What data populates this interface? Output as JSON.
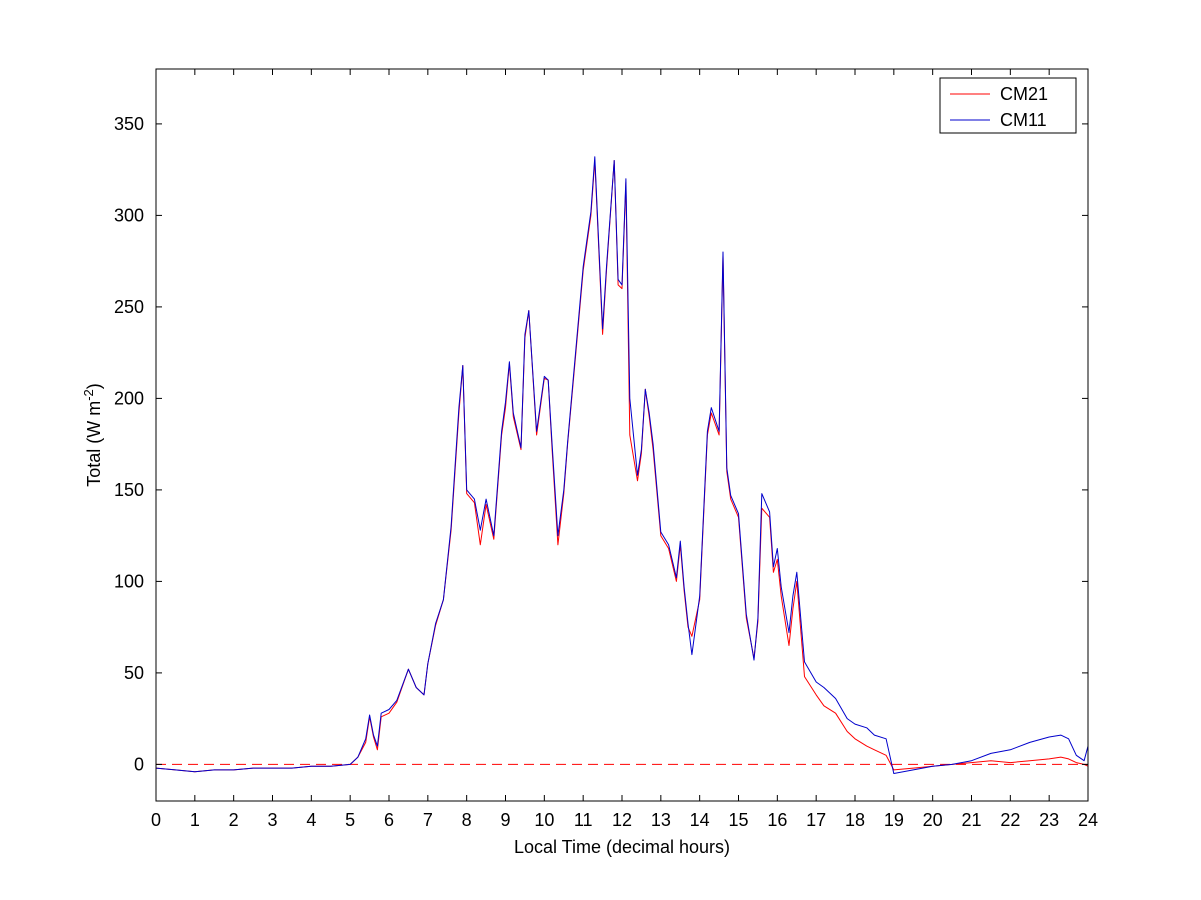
{
  "chart_data": {
    "type": "line",
    "xlabel": "Local Time (decimal hours)",
    "ylabel": {
      "main": "Total (W m",
      "sup": "-2",
      "close": ")"
    },
    "xlim": [
      0,
      24
    ],
    "ylim": [
      -20,
      380
    ],
    "xticks": [
      "0",
      "1",
      "2",
      "3",
      "4",
      "5",
      "6",
      "7",
      "8",
      "9",
      "10",
      "11",
      "12",
      "13",
      "14",
      "15",
      "16",
      "17",
      "18",
      "19",
      "20",
      "21",
      "22",
      "23",
      "24"
    ],
    "yticks": [
      "0",
      "50",
      "100",
      "150",
      "200",
      "250",
      "300",
      "350"
    ],
    "grid": false,
    "legend_position": "top-right",
    "reference_line": {
      "y": 0,
      "color": "#ff0000",
      "style": "dashed"
    },
    "series": [
      {
        "name": "CM21",
        "color": "#ff0000",
        "x": [
          0,
          0.5,
          1,
          1.5,
          2,
          2.5,
          3,
          3.5,
          4,
          4.5,
          5,
          5.2,
          5.4,
          5.5,
          5.6,
          5.7,
          5.8,
          6,
          6.2,
          6.5,
          6.7,
          6.9,
          7,
          7.2,
          7.4,
          7.6,
          7.8,
          7.9,
          8,
          8.2,
          8.35,
          8.5,
          8.7,
          8.9,
          9,
          9.1,
          9.2,
          9.4,
          9.5,
          9.6,
          9.8,
          10,
          10.1,
          10.2,
          10.35,
          10.5,
          10.6,
          10.8,
          11,
          11.2,
          11.3,
          11.5,
          11.6,
          11.8,
          11.9,
          12,
          12.1,
          12.2,
          12.4,
          12.5,
          12.6,
          12.7,
          12.8,
          13,
          13.2,
          13.4,
          13.5,
          13.6,
          13.7,
          13.8,
          14,
          14.2,
          14.3,
          14.5,
          14.6,
          14.7,
          14.8,
          15,
          15.2,
          15.4,
          15.5,
          15.6,
          15.8,
          15.9,
          16,
          16.1,
          16.3,
          16.4,
          16.5,
          16.7,
          17,
          17.2,
          17.5,
          17.8,
          18,
          18.3,
          18.5,
          18.8,
          19,
          19.5,
          20,
          20.5,
          21,
          21.5,
          22,
          22.5,
          23,
          23.3,
          23.5,
          23.7,
          23.9,
          24
        ],
        "y": [
          -2,
          -3,
          -4,
          -3,
          -3,
          -2,
          -2,
          -2,
          -1,
          -1,
          0,
          4,
          12,
          26,
          15,
          8,
          26,
          28,
          34,
          52,
          42,
          38,
          55,
          76,
          90,
          128,
          192,
          218,
          148,
          143,
          120,
          142,
          123,
          180,
          195,
          219,
          190,
          172,
          233,
          248,
          180,
          211,
          210,
          172,
          120,
          148,
          175,
          222,
          270,
          300,
          330,
          235,
          270,
          330,
          262,
          260,
          318,
          180,
          155,
          170,
          205,
          190,
          172,
          125,
          118,
          100,
          120,
          95,
          75,
          70,
          90,
          180,
          192,
          180,
          278,
          160,
          145,
          135,
          80,
          58,
          78,
          140,
          135,
          105,
          112,
          92,
          65,
          85,
          100,
          48,
          38,
          32,
          28,
          18,
          14,
          10,
          8,
          5,
          -3,
          -2,
          -1,
          0,
          1,
          2,
          1,
          2,
          3,
          4,
          3,
          1,
          0,
          -1
        ]
      },
      {
        "name": "CM11",
        "color": "#0000cc",
        "x": [
          0,
          0.5,
          1,
          1.5,
          2,
          2.5,
          3,
          3.5,
          4,
          4.5,
          5,
          5.2,
          5.4,
          5.5,
          5.6,
          5.7,
          5.8,
          6,
          6.2,
          6.5,
          6.7,
          6.9,
          7,
          7.2,
          7.4,
          7.6,
          7.8,
          7.9,
          8,
          8.2,
          8.35,
          8.5,
          8.7,
          8.9,
          9,
          9.1,
          9.2,
          9.4,
          9.5,
          9.6,
          9.8,
          10,
          10.1,
          10.2,
          10.35,
          10.5,
          10.6,
          10.8,
          11,
          11.2,
          11.3,
          11.5,
          11.6,
          11.8,
          11.9,
          12,
          12.1,
          12.2,
          12.4,
          12.5,
          12.6,
          12.7,
          12.8,
          13,
          13.2,
          13.4,
          13.5,
          13.6,
          13.7,
          13.8,
          14,
          14.2,
          14.3,
          14.5,
          14.6,
          14.7,
          14.8,
          15,
          15.2,
          15.4,
          15.5,
          15.6,
          15.8,
          15.9,
          16,
          16.1,
          16.3,
          16.4,
          16.5,
          16.7,
          17,
          17.2,
          17.5,
          17.8,
          18,
          18.3,
          18.5,
          18.8,
          19,
          19.5,
          20,
          20.5,
          21,
          21.5,
          22,
          22.5,
          23,
          23.3,
          23.5,
          23.7,
          23.9,
          24
        ],
        "y": [
          -2,
          -3,
          -4,
          -3,
          -3,
          -2,
          -2,
          -2,
          -1,
          -1,
          0,
          4,
          14,
          27,
          16,
          10,
          28,
          30,
          35,
          52,
          42,
          38,
          55,
          77,
          90,
          130,
          195,
          218,
          150,
          145,
          128,
          145,
          125,
          182,
          198,
          220,
          192,
          173,
          235,
          248,
          182,
          212,
          210,
          175,
          125,
          150,
          176,
          224,
          272,
          302,
          332,
          238,
          272,
          330,
          265,
          262,
          320,
          200,
          158,
          172,
          205,
          192,
          175,
          127,
          120,
          102,
          122,
          97,
          77,
          60,
          92,
          182,
          195,
          182,
          280,
          162,
          147,
          137,
          82,
          57,
          80,
          148,
          138,
          108,
          118,
          97,
          72,
          92,
          105,
          56,
          45,
          42,
          36,
          25,
          22,
          20,
          16,
          14,
          -5,
          -3,
          -1,
          0,
          2,
          6,
          8,
          12,
          15,
          16,
          14,
          5,
          2,
          10
        ]
      }
    ]
  }
}
